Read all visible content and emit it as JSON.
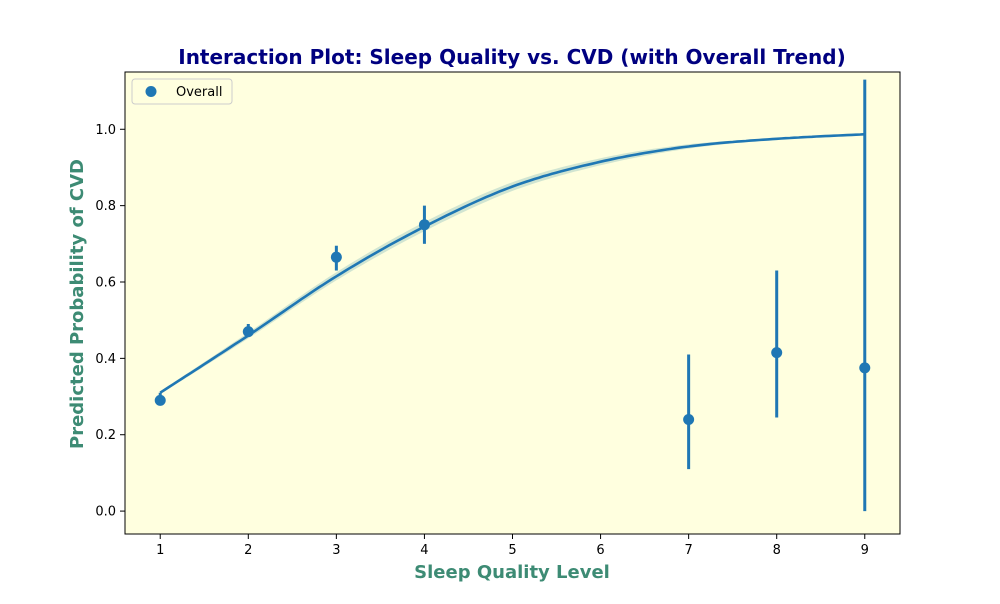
{
  "chart_data": {
    "type": "scatter",
    "title": "Interaction Plot: Sleep Quality vs. CVD (with Overall Trend)",
    "xlabel": "Sleep Quality Level",
    "ylabel": "Predicted Probability of CVD",
    "xlim": [
      0.6,
      9.4
    ],
    "ylim": [
      -0.06,
      1.15
    ],
    "xticks": [
      1,
      2,
      3,
      4,
      5,
      6,
      7,
      8,
      9
    ],
    "xtick_labels": [
      "1",
      "2",
      "3",
      "4",
      "5",
      "6",
      "7",
      "8",
      "9"
    ],
    "yticks": [
      0.0,
      0.2,
      0.4,
      0.6,
      0.8,
      1.0
    ],
    "ytick_labels": [
      "0.0",
      "0.2",
      "0.4",
      "0.6",
      "0.8",
      "1.0"
    ],
    "grid": false,
    "legend_position": "top-left",
    "series": [
      {
        "name": "Overall",
        "points": [
          {
            "x": 1,
            "y": 0.29,
            "err_low": 0.28,
            "err_high": 0.31
          },
          {
            "x": 2,
            "y": 0.47,
            "err_low": 0.46,
            "err_high": 0.49
          },
          {
            "x": 3,
            "y": 0.665,
            "err_low": 0.63,
            "err_high": 0.695
          },
          {
            "x": 4,
            "y": 0.75,
            "err_low": 0.7,
            "err_high": 0.8
          },
          {
            "x": 7,
            "y": 0.24,
            "err_low": 0.11,
            "err_high": 0.41
          },
          {
            "x": 8,
            "y": 0.415,
            "err_low": 0.245,
            "err_high": 0.63
          },
          {
            "x": 9,
            "y": 0.375,
            "err_low": 0.0,
            "err_high": 1.13
          }
        ]
      }
    ],
    "trend": {
      "type": "logistic",
      "x_range": [
        1,
        9
      ],
      "samples": [
        {
          "x": 1,
          "y": 0.31
        },
        {
          "x": 2,
          "y": 0.46
        },
        {
          "x": 3,
          "y": 0.615
        },
        {
          "x": 4,
          "y": 0.745
        },
        {
          "x": 5,
          "y": 0.85
        },
        {
          "x": 6,
          "y": 0.915
        },
        {
          "x": 7,
          "y": 0.955
        },
        {
          "x": 8,
          "y": 0.975
        },
        {
          "x": 9,
          "y": 0.987
        }
      ],
      "band_halfwidth": 0.012
    },
    "colors": {
      "series": "#1f77b4",
      "band": "#c9e0cf",
      "plot_background": "#ffffdf",
      "title": "#000080",
      "axis_label": "#3d8b74"
    }
  }
}
